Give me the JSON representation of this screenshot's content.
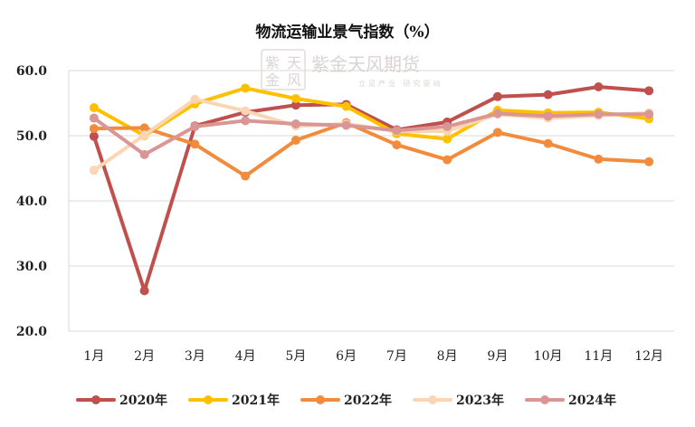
{
  "chart_data": {
    "type": "line",
    "title": "物流运输业景气指数（%）",
    "xlabel": "",
    "ylabel": "",
    "categories": [
      "1月",
      "2月",
      "3月",
      "4月",
      "5月",
      "6月",
      "7月",
      "8月",
      "9月",
      "10月",
      "11月",
      "12月"
    ],
    "ylim": [
      20,
      60
    ],
    "yticks": [
      "20.0",
      "30.0",
      "40.0",
      "50.0",
      "60.0"
    ],
    "grid": true,
    "legend_position": "bottom",
    "series": [
      {
        "name": "2020年",
        "color": "#c0504d",
        "values": [
          49.9,
          26.2,
          51.5,
          53.6,
          54.7,
          54.8,
          50.9,
          52.1,
          56.0,
          56.3,
          57.5,
          56.9
        ]
      },
      {
        "name": "2021年",
        "color": "#ffc000",
        "values": [
          54.3,
          50.0,
          54.9,
          57.3,
          55.7,
          54.5,
          50.3,
          49.5,
          53.9,
          53.5,
          53.6,
          52.6
        ]
      },
      {
        "name": "2022年",
        "color": "#f28c3c",
        "values": [
          51.1,
          51.2,
          48.7,
          43.8,
          49.3,
          52.0,
          48.6,
          46.3,
          50.5,
          48.8,
          46.4,
          46.0
        ]
      },
      {
        "name": "2023年",
        "color": "#fcd5b5",
        "values": [
          44.7,
          50.1,
          55.6,
          53.8,
          51.5,
          51.8,
          50.7,
          50.7,
          53.3,
          52.7,
          53.1,
          53.5
        ]
      },
      {
        "name": "2024年",
        "color": "#d99694",
        "values": [
          52.7,
          47.1,
          51.4,
          52.3,
          51.8,
          51.6,
          50.8,
          51.4,
          53.4,
          53.0,
          53.3,
          53.3
        ]
      }
    ]
  },
  "watermark": {
    "logo_chars": [
      "紫",
      "天",
      "金",
      "风"
    ],
    "brand": "紫金天风期货",
    "slogan": "立足产业 研究驱动"
  }
}
